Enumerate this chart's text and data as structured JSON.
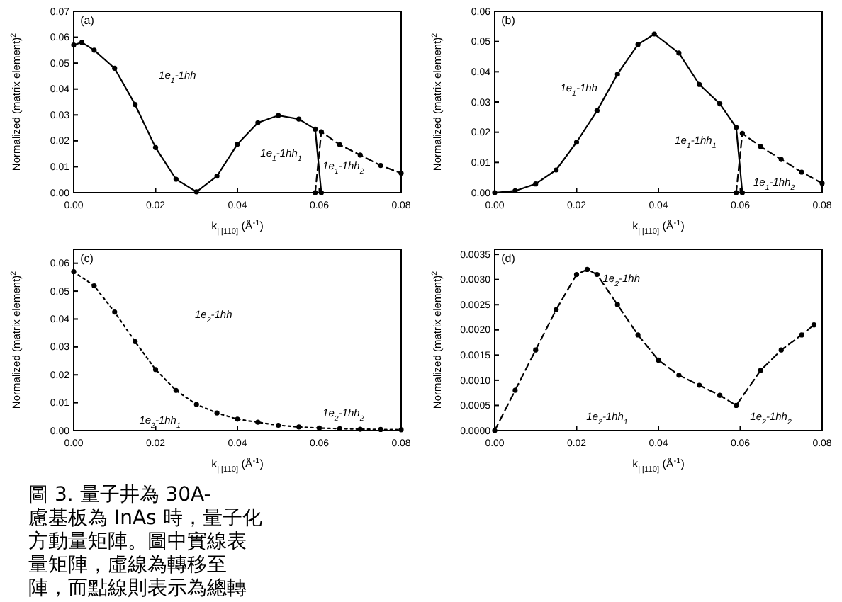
{
  "chart_data": [
    {
      "type": "line",
      "xlabel": "k$_{||[110]}$ (Å$^{-1}$)",
      "ylabel": "Normalized (matrix element)$^{2}$",
      "xlim": [
        0,
        0.08
      ],
      "ylim": [
        0,
        0.07
      ],
      "xticks": [
        {
          "value": 0,
          "label": "0.00"
        },
        {
          "value": 0.02,
          "label": "0.02"
        },
        {
          "value": 0.04,
          "label": "0.04"
        },
        {
          "value": 0.06,
          "label": "0.06"
        },
        {
          "value": 0.08,
          "label": "0.08"
        }
      ],
      "yticks": [
        {
          "value": 0,
          "label": "0.00"
        },
        {
          "value": 0.01,
          "label": "0.01"
        },
        {
          "value": 0.02,
          "label": "0.02"
        },
        {
          "value": 0.03,
          "label": "0.03"
        },
        {
          "value": 0.04,
          "label": "0.04"
        },
        {
          "value": 0.05,
          "label": "0.05"
        },
        {
          "value": 0.06,
          "label": "0.06"
        },
        {
          "value": 0.07,
          "label": "0.07"
        }
      ],
      "series": [
        {
          "color": "#000000",
          "line_style": "solid",
          "marker": "circle",
          "x": [
            0,
            0.002,
            0.005,
            0.01,
            0.015,
            0.02,
            0.025,
            0.03,
            0.035,
            0.04,
            0.045,
            0.05,
            0.055,
            0.059,
            0.0605
          ],
          "values": [
            0.057,
            0.058,
            0.055,
            0.048,
            0.034,
            0.0174,
            0.0052,
            0.0003,
            0.0064,
            0.0187,
            0.027,
            0.0298,
            0.0284,
            0.0245,
            0
          ]
        },
        {
          "color": "#000000",
          "line_style": "dashed",
          "marker": "circle",
          "x": [
            0.059,
            0.0605,
            0.065,
            0.07,
            0.075,
            0.08
          ],
          "values": [
            0,
            0.0235,
            0.0185,
            0.0145,
            0.0105,
            0.0075
          ]
        }
      ],
      "annotations": [
        "(a)",
        "1e$_{1}$-1hh",
        "1e$_{1}$-1hh$_{1}$",
        "1e$_{1}$-1hh$_{2}$"
      ]
    },
    {
      "type": "line",
      "xlabel": "k$_{||[110]}$ (Å$^{-1}$)",
      "ylabel": "Normalized (matrix element)$^{2}$",
      "xlim": [
        0,
        0.08
      ],
      "ylim": [
        0,
        0.06
      ],
      "xticks": [
        {
          "value": 0,
          "label": "0.00"
        },
        {
          "value": 0.02,
          "label": "0.02"
        },
        {
          "value": 0.04,
          "label": "0.04"
        },
        {
          "value": 0.06,
          "label": "0.06"
        },
        {
          "value": 0.08,
          "label": "0.08"
        }
      ],
      "yticks": [
        {
          "value": 0,
          "label": "0.00"
        },
        {
          "value": 0.01,
          "label": "0.01"
        },
        {
          "value": 0.02,
          "label": "0.02"
        },
        {
          "value": 0.03,
          "label": "0.03"
        },
        {
          "value": 0.04,
          "label": "0.04"
        },
        {
          "value": 0.05,
          "label": "0.05"
        },
        {
          "value": 0.06,
          "label": "0.06"
        }
      ],
      "series": [
        {
          "color": "#000000",
          "line_style": "solid",
          "marker": "circle",
          "x": [
            0,
            0.005,
            0.01,
            0.015,
            0.02,
            0.025,
            0.03,
            0.035,
            0.039,
            0.045,
            0.05,
            0.055,
            0.059,
            0.0605
          ],
          "values": [
            0,
            0.0006,
            0.0029,
            0.0075,
            0.0167,
            0.0271,
            0.0392,
            0.049,
            0.0525,
            0.0462,
            0.0358,
            0.0294,
            0.0216,
            0
          ]
        },
        {
          "color": "#000000",
          "line_style": "dashed",
          "marker": "circle",
          "x": [
            0.059,
            0.0605,
            0.065,
            0.07,
            0.075,
            0.08
          ],
          "values": [
            0,
            0.0196,
            0.0152,
            0.011,
            0.0068,
            0.0031
          ]
        }
      ],
      "annotations": [
        "(b)",
        "1e$_{1}$-1hh",
        "1e$_{1}$-1hh$_{1}$",
        "1e$_{1}$-1hh$_{2}$"
      ]
    },
    {
      "type": "line",
      "xlabel": "k$_{||[110]}$ (Å$^{-1}$)",
      "ylabel": "Normalized (matrix element)$^{2}$",
      "xlim": [
        0,
        0.08
      ],
      "ylim": [
        0,
        0.065
      ],
      "xticks": [
        {
          "value": 0,
          "label": "0.00"
        },
        {
          "value": 0.02,
          "label": "0.02"
        },
        {
          "value": 0.04,
          "label": "0.04"
        },
        {
          "value": 0.06,
          "label": "0.06"
        },
        {
          "value": 0.08,
          "label": "0.08"
        }
      ],
      "yticks": [
        {
          "value": 0,
          "label": "0.00"
        },
        {
          "value": 0.01,
          "label": "0.01"
        },
        {
          "value": 0.02,
          "label": "0.02"
        },
        {
          "value": 0.03,
          "label": "0.03"
        },
        {
          "value": 0.04,
          "label": "0.04"
        },
        {
          "value": 0.05,
          "label": "0.05"
        },
        {
          "value": 0.06,
          "label": "0.06"
        }
      ],
      "series": [
        {
          "color": "#000000",
          "line_style": "dotted",
          "marker": "circle",
          "x": [
            0,
            0.005,
            0.01,
            0.015,
            0.02,
            0.025,
            0.03,
            0.035,
            0.04,
            0.045,
            0.05,
            0.055,
            0.06,
            0.065,
            0.07,
            0.075,
            0.08
          ],
          "values": [
            0.057,
            0.0519,
            0.0425,
            0.0319,
            0.0219,
            0.0144,
            0.0094,
            0.0063,
            0.0041,
            0.003,
            0.0019,
            0.0013,
            0.0009,
            0.0007,
            0.0005,
            0.0004,
            0.0003
          ]
        }
      ],
      "annotations": [
        "(c)",
        "1e$_{2}$-1hh",
        "1e$_{2}$-1hh$_{1}$",
        "1e$_{2}$-1hh$_{2}$"
      ]
    },
    {
      "type": "line",
      "xlabel": "k$_{||[110]}$ (Å$^{-1}$)",
      "ylabel": "Normalized (matrix element)$^{2}$",
      "xlim": [
        0,
        0.08
      ],
      "ylim": [
        0,
        0.0036
      ],
      "xticks": [
        {
          "value": 0,
          "label": "0.00"
        },
        {
          "value": 0.02,
          "label": "0.02"
        },
        {
          "value": 0.04,
          "label": "0.04"
        },
        {
          "value": 0.06,
          "label": "0.06"
        },
        {
          "value": 0.08,
          "label": "0.08"
        }
      ],
      "yticks": [
        {
          "value": 0,
          "label": "0.0000"
        },
        {
          "value": 0.0005,
          "label": "0.0005"
        },
        {
          "value": 0.001,
          "label": "0.0010"
        },
        {
          "value": 0.0015,
          "label": "0.0015"
        },
        {
          "value": 0.002,
          "label": "0.0020"
        },
        {
          "value": 0.0025,
          "label": "0.0025"
        },
        {
          "value": 0.003,
          "label": "0.0030"
        },
        {
          "value": 0.0035,
          "label": "0.0035"
        }
      ],
      "series": [
        {
          "color": "#000000",
          "line_style": "dashed",
          "marker": "circle",
          "x": [
            0,
            0.005,
            0.01,
            0.015,
            0.02,
            0.0226,
            0.025,
            0.03,
            0.035,
            0.04,
            0.045,
            0.05,
            0.055,
            0.059,
            0.065,
            0.07,
            0.075,
            0.078
          ],
          "values": [
            0,
            0.0008,
            0.0016,
            0.0024,
            0.0031,
            0.0032,
            0.0031,
            0.0025,
            0.0019,
            0.0014,
            0.0011,
            0.0009,
            0.0007,
            0.0005,
            0.0012,
            0.0016,
            0.0019,
            0.0021
          ]
        }
      ],
      "annotations": [
        "(d)",
        "1e$_{2}$-1hh",
        "1e$_{2}$-1hh$_{1}$",
        "1e$_{2}$-1hh$_{2}$"
      ]
    },
    {
      "type": "other",
      "annotations": [
        "圖 3. 量子井為 30A-",
        "慮基板為 InAs 時，量子化",
        "方動量矩陣。圖中實線表",
        "量矩陣，虛線為轉移至",
        "陣，而點線則表示為總轉"
      ]
    }
  ]
}
